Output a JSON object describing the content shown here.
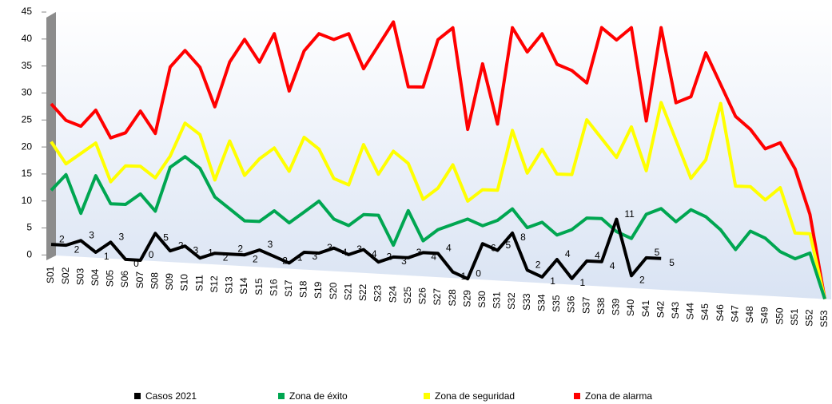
{
  "chart_data": {
    "type": "line",
    "categories": [
      "S01",
      "S02",
      "S03",
      "S04",
      "S05",
      "S06",
      "S07",
      "S08",
      "S09",
      "S10",
      "S11",
      "S12",
      "S13",
      "S14",
      "S15",
      "S16",
      "S17",
      "S18",
      "S19",
      "S20",
      "S21",
      "S22",
      "S23",
      "S24",
      "S25",
      "S26",
      "S27",
      "S28",
      "S29",
      "S30",
      "S31",
      "S32",
      "S33",
      "S34",
      "S35",
      "S36",
      "S37",
      "S38",
      "S39",
      "S40",
      "S41",
      "S42",
      "S43",
      "S44",
      "S45",
      "S46",
      "S47",
      "S48",
      "S49",
      "S50",
      "S51",
      "S52",
      "S53"
    ],
    "series": [
      {
        "name": "Casos 2021",
        "color": "#000000",
        "labels": true,
        "values": [
          2,
          2,
          3,
          1,
          3,
          0,
          0,
          5,
          2,
          3,
          1,
          2,
          2,
          2,
          3,
          2,
          1,
          3,
          3,
          4,
          3,
          4,
          2,
          3,
          3,
          4,
          4,
          1,
          0,
          6,
          5,
          8,
          2,
          1,
          4,
          1,
          4,
          4,
          11,
          2,
          5,
          5,
          null,
          null,
          null,
          null,
          null,
          null,
          null,
          null,
          null,
          null,
          null
        ]
      },
      {
        "name": "Zona de éxito",
        "color": "#00a651",
        "values": [
          12,
          15,
          8,
          15,
          10,
          10,
          12,
          9,
          17,
          19,
          17,
          12,
          10,
          8,
          8,
          10,
          8,
          10,
          12,
          9,
          8,
          10,
          10,
          5,
          11,
          6,
          8,
          9,
          10,
          9,
          10,
          12,
          9,
          10,
          8,
          9,
          11,
          11,
          9,
          8,
          12,
          13,
          11,
          13,
          12,
          10,
          7,
          10,
          9,
          7,
          6,
          7,
          0
        ]
      },
      {
        "name": "Zona de seguridad",
        "color": "#ffff00",
        "values": [
          21,
          17,
          19,
          21,
          14,
          17,
          17,
          15,
          19,
          25,
          23,
          15,
          22,
          16,
          19,
          21,
          17,
          23,
          21,
          16,
          15,
          22,
          17,
          21,
          19,
          13,
          15,
          19,
          13,
          15,
          15,
          25,
          18,
          22,
          18,
          18,
          27,
          24,
          21,
          26,
          19,
          30,
          24,
          18,
          21,
          30,
          17,
          17,
          15,
          17,
          10,
          10,
          0
        ]
      },
      {
        "name": "Zona de alarma",
        "color": "#ff0000",
        "values": [
          28,
          25,
          24,
          27,
          22,
          23,
          27,
          23,
          35,
          38,
          35,
          28,
          36,
          40,
          36,
          41,
          31,
          38,
          41,
          40,
          41,
          35,
          39,
          43,
          32,
          32,
          40,
          42,
          25,
          36,
          26,
          42,
          38,
          41,
          36,
          35,
          33,
          42,
          40,
          42,
          27,
          42,
          30,
          31,
          38,
          33,
          28,
          26,
          23,
          24,
          20,
          13,
          0
        ]
      }
    ],
    "ylim": [
      0,
      45
    ],
    "yticks": [
      0,
      5,
      10,
      15,
      20,
      25,
      30,
      35,
      40,
      45
    ],
    "grid": false,
    "legend": "bottom"
  }
}
